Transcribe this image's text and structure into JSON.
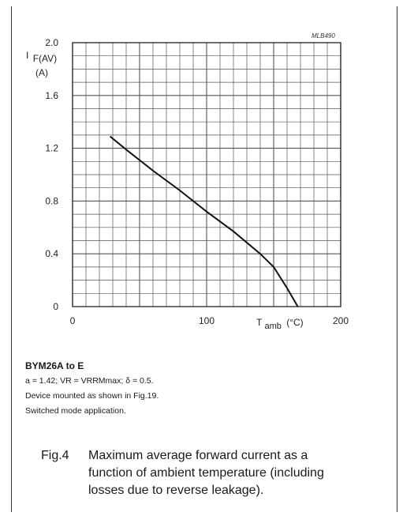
{
  "chart_data": {
    "type": "line",
    "reference": "MLB490",
    "ylabel": {
      "symbol": "I",
      "subscript": "F(AV)",
      "unit": "(A)"
    },
    "xlabel": {
      "symbol": "T",
      "subscript": "amb",
      "unit": "(°C)"
    },
    "xlim": [
      0,
      200
    ],
    "ylim": [
      0,
      2.0
    ],
    "x_ticks": [
      "0",
      "100",
      "200"
    ],
    "y_ticks": [
      "0",
      "0.4",
      "0.8",
      "1.2",
      "1.6",
      "2.0"
    ],
    "grid": true,
    "series": [
      {
        "x": [
          28,
          40,
          60,
          80,
          100,
          120,
          140,
          150,
          160,
          164,
          168
        ],
        "y": [
          1.29,
          1.19,
          1.03,
          0.88,
          0.72,
          0.57,
          0.4,
          0.3,
          0.14,
          0.07,
          0.0
        ]
      }
    ]
  },
  "notes": {
    "header": "BYM26A to E",
    "line1": "a = 1.42; VR = VRRMmax; δ = 0.5.",
    "line2": "Device mounted as shown in Fig.19.",
    "line3": "Switched mode application."
  },
  "caption": {
    "fig": "Fig.4",
    "text": "Maximum average forward current as a function of ambient temperature (including losses due to reverse leakage)."
  }
}
